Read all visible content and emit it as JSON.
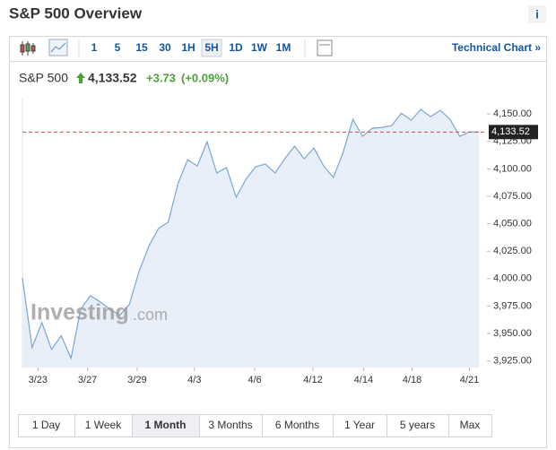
{
  "header": {
    "title": "S&P 500 Overview",
    "info_icon": "i"
  },
  "toolbar": {
    "intervals": [
      "1",
      "5",
      "15",
      "30",
      "1H",
      "5H",
      "1D",
      "1W",
      "1M"
    ],
    "selected": "5H",
    "link": "Technical Chart »"
  },
  "quote": {
    "name": "S&P 500",
    "last": "4,133.52",
    "change": "+3.73",
    "change_pct": "(+0.09%)"
  },
  "watermark": {
    "brand": "Investing",
    "suffix": ".com"
  },
  "chart_data": {
    "type": "area",
    "x": [
      0,
      1,
      2,
      3,
      4,
      5,
      6,
      7,
      8,
      9,
      10,
      11,
      12,
      13,
      14,
      15,
      16,
      17,
      18,
      19,
      20,
      21,
      22,
      23,
      24,
      25,
      26,
      27,
      28,
      29,
      30,
      31,
      32,
      33,
      34,
      35,
      36,
      37,
      38,
      39,
      40,
      41,
      42,
      43,
      44,
      45,
      46,
      47
    ],
    "series": [
      {
        "name": "S&P 500",
        "color": "#7aa6d6",
        "values": [
          4000.8,
          3937.2,
          3960,
          3935.6,
          3948,
          3927.5,
          3972.3,
          3984.5,
          3978.8,
          3972.3,
          3966.6,
          3976.4,
          4006.5,
          4029.4,
          4045.7,
          4051.4,
          4086.4,
          4108.4,
          4102.7,
          4124.7,
          4096.2,
          4101.1,
          4074.2,
          4090.5,
          4101.9,
          4104.3,
          4096.2,
          4109.2,
          4120.7,
          4109.2,
          4119,
          4102.7,
          4092.1,
          4114.9,
          4145.1,
          4129.6,
          4137,
          4137.8,
          4139.4,
          4150.8,
          4144.3,
          4154.1,
          4147.6,
          4153.3,
          4145.1,
          4129.6,
          4133.7,
          4133.5
        ]
      }
    ],
    "xlim": [
      0,
      47.8
    ],
    "xticks": [
      {
        "value": 1.6,
        "label": "3/23"
      },
      {
        "value": 6.7,
        "label": "3/27"
      },
      {
        "value": 11.8,
        "label": "3/29"
      },
      {
        "value": 17.7,
        "label": "4/3"
      },
      {
        "value": 23.9,
        "label": "4/6"
      },
      {
        "value": 29.9,
        "label": "4/12"
      },
      {
        "value": 35.1,
        "label": "4/14"
      },
      {
        "value": 40.1,
        "label": "4/18"
      },
      {
        "value": 46.0,
        "label": "4/21"
      }
    ],
    "ylim": [
      3919,
      4164
    ],
    "yticks": [
      {
        "value": 3925,
        "label": "3,925.00"
      },
      {
        "value": 3950,
        "label": "3,950.00"
      },
      {
        "value": 3975,
        "label": "3,975.00"
      },
      {
        "value": 4000,
        "label": "4,000.00"
      },
      {
        "value": 4025,
        "label": "4,025.00"
      },
      {
        "value": 4050,
        "label": "4,050.00"
      },
      {
        "value": 4075,
        "label": "4,075.00"
      },
      {
        "value": 4100,
        "label": "4,100.00"
      },
      {
        "value": 4125,
        "label": "4,125.00"
      },
      {
        "value": 4150,
        "label": "4,150.00"
      }
    ],
    "reference_line": {
      "value": 4133.52,
      "label": "4,133.52",
      "color": "#c0504d"
    },
    "fill_color": "#e9eff8",
    "grid": false
  },
  "ranges": {
    "options": [
      "1 Day",
      "1 Week",
      "1 Month",
      "3 Months",
      "6 Months",
      "1 Year",
      "5 years",
      "Max"
    ],
    "selected": "1 Month"
  }
}
